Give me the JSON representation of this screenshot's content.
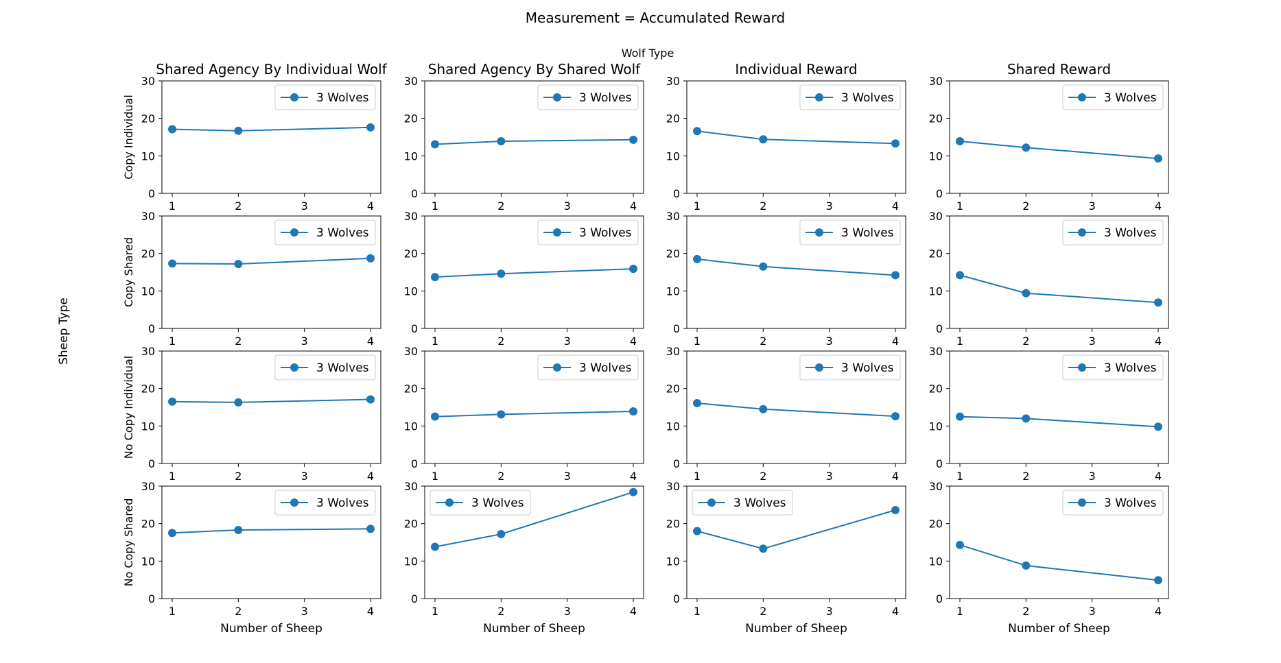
{
  "figure": {
    "title": "Measurement = Accumulated Reward",
    "column_group_label": "Wolf Type",
    "row_group_label": "Sheep Type",
    "x_axis_label": "Number of Sheep"
  },
  "colors": {
    "series": "#1f77b4",
    "axes": "#000000",
    "legend_border": "#cccccc"
  },
  "chart_data": [
    {
      "type": "line",
      "row_label": "Copy Individual",
      "column_title": "Shared Agency By Individual Wolf",
      "x": [
        1,
        2,
        4
      ],
      "series": [
        {
          "name": "3 Wolves",
          "values": [
            17.1,
            16.7,
            17.6
          ]
        }
      ],
      "xticks": [
        1,
        2,
        3,
        4
      ],
      "yticks": [
        0,
        10,
        20,
        30
      ],
      "ylim": [
        0,
        30
      ],
      "legend": "upper right"
    },
    {
      "type": "line",
      "row_label": "Copy Individual",
      "column_title": "Shared Agency By Shared Wolf",
      "x": [
        1,
        2,
        4
      ],
      "series": [
        {
          "name": "3 Wolves",
          "values": [
            13.1,
            13.9,
            14.3
          ]
        }
      ],
      "xticks": [
        1,
        2,
        3,
        4
      ],
      "yticks": [
        0,
        10,
        20,
        30
      ],
      "ylim": [
        0,
        30
      ],
      "legend": "upper right"
    },
    {
      "type": "line",
      "row_label": "Copy Individual",
      "column_title": "Individual Reward",
      "x": [
        1,
        2,
        4
      ],
      "series": [
        {
          "name": "3 Wolves",
          "values": [
            16.6,
            14.4,
            13.3
          ]
        }
      ],
      "xticks": [
        1,
        2,
        3,
        4
      ],
      "yticks": [
        0,
        10,
        20,
        30
      ],
      "ylim": [
        0,
        30
      ],
      "legend": "upper right"
    },
    {
      "type": "line",
      "row_label": "Copy Individual",
      "column_title": "Shared Reward",
      "x": [
        1,
        2,
        4
      ],
      "series": [
        {
          "name": "3 Wolves",
          "values": [
            13.9,
            12.2,
            9.3
          ]
        }
      ],
      "xticks": [
        1,
        2,
        3,
        4
      ],
      "yticks": [
        0,
        10,
        20,
        30
      ],
      "ylim": [
        0,
        30
      ],
      "legend": "upper right"
    },
    {
      "type": "line",
      "row_label": "Copy Shared",
      "column_title": "Shared Agency By Individual Wolf",
      "x": [
        1,
        2,
        4
      ],
      "series": [
        {
          "name": "3 Wolves",
          "values": [
            17.3,
            17.2,
            18.7
          ]
        }
      ],
      "xticks": [
        1,
        2,
        3,
        4
      ],
      "yticks": [
        0,
        10,
        20,
        30
      ],
      "ylim": [
        0,
        30
      ],
      "legend": "upper right"
    },
    {
      "type": "line",
      "row_label": "Copy Shared",
      "column_title": "Shared Agency By Shared Wolf",
      "x": [
        1,
        2,
        4
      ],
      "series": [
        {
          "name": "3 Wolves",
          "values": [
            13.7,
            14.6,
            15.9
          ]
        }
      ],
      "xticks": [
        1,
        2,
        3,
        4
      ],
      "yticks": [
        0,
        10,
        20,
        30
      ],
      "ylim": [
        0,
        30
      ],
      "legend": "upper right"
    },
    {
      "type": "line",
      "row_label": "Copy Shared",
      "column_title": "Individual Reward",
      "x": [
        1,
        2,
        4
      ],
      "series": [
        {
          "name": "3 Wolves",
          "values": [
            18.5,
            16.5,
            14.2
          ]
        }
      ],
      "xticks": [
        1,
        2,
        3,
        4
      ],
      "yticks": [
        0,
        10,
        20,
        30
      ],
      "ylim": [
        0,
        30
      ],
      "legend": "upper right"
    },
    {
      "type": "line",
      "row_label": "Copy Shared",
      "column_title": "Shared Reward",
      "x": [
        1,
        2,
        4
      ],
      "series": [
        {
          "name": "3 Wolves",
          "values": [
            14.2,
            9.4,
            6.9
          ]
        }
      ],
      "xticks": [
        1,
        2,
        3,
        4
      ],
      "yticks": [
        0,
        10,
        20,
        30
      ],
      "ylim": [
        0,
        30
      ],
      "legend": "upper right"
    },
    {
      "type": "line",
      "row_label": "No Copy Individual",
      "column_title": "Shared Agency By Individual Wolf",
      "x": [
        1,
        2,
        4
      ],
      "series": [
        {
          "name": "3 Wolves",
          "values": [
            16.5,
            16.3,
            17.1
          ]
        }
      ],
      "xticks": [
        1,
        2,
        3,
        4
      ],
      "yticks": [
        0,
        10,
        20,
        30
      ],
      "ylim": [
        0,
        30
      ],
      "legend": "upper right"
    },
    {
      "type": "line",
      "row_label": "No Copy Individual",
      "column_title": "Shared Agency By Shared Wolf",
      "x": [
        1,
        2,
        4
      ],
      "series": [
        {
          "name": "3 Wolves",
          "values": [
            12.5,
            13.1,
            13.9
          ]
        }
      ],
      "xticks": [
        1,
        2,
        3,
        4
      ],
      "yticks": [
        0,
        10,
        20,
        30
      ],
      "ylim": [
        0,
        30
      ],
      "legend": "upper right"
    },
    {
      "type": "line",
      "row_label": "No Copy Individual",
      "column_title": "Individual Reward",
      "x": [
        1,
        2,
        4
      ],
      "series": [
        {
          "name": "3 Wolves",
          "values": [
            16.1,
            14.5,
            12.6
          ]
        }
      ],
      "xticks": [
        1,
        2,
        3,
        4
      ],
      "yticks": [
        0,
        10,
        20,
        30
      ],
      "ylim": [
        0,
        30
      ],
      "legend": "upper right"
    },
    {
      "type": "line",
      "row_label": "No Copy Individual",
      "column_title": "Shared Reward",
      "x": [
        1,
        2,
        4
      ],
      "series": [
        {
          "name": "3 Wolves",
          "values": [
            12.5,
            12.0,
            9.8
          ]
        }
      ],
      "xticks": [
        1,
        2,
        3,
        4
      ],
      "yticks": [
        0,
        10,
        20,
        30
      ],
      "ylim": [
        0,
        30
      ],
      "legend": "upper right"
    },
    {
      "type": "line",
      "row_label": "No Copy Shared",
      "column_title": "Shared Agency By Individual Wolf",
      "x": [
        1,
        2,
        4
      ],
      "series": [
        {
          "name": "3 Wolves",
          "values": [
            17.5,
            18.3,
            18.6
          ]
        }
      ],
      "xticks": [
        1,
        2,
        3,
        4
      ],
      "yticks": [
        0,
        10,
        20,
        30
      ],
      "ylim": [
        0,
        30
      ],
      "legend": "upper right"
    },
    {
      "type": "line",
      "row_label": "No Copy Shared",
      "column_title": "Shared Agency By Shared Wolf",
      "x": [
        1,
        2,
        4
      ],
      "series": [
        {
          "name": "3 Wolves",
          "values": [
            13.8,
            17.2,
            28.4
          ]
        }
      ],
      "xticks": [
        1,
        2,
        3,
        4
      ],
      "yticks": [
        0,
        10,
        20,
        30
      ],
      "ylim": [
        0,
        30
      ],
      "legend": "upper left"
    },
    {
      "type": "line",
      "row_label": "No Copy Shared",
      "column_title": "Individual Reward",
      "x": [
        1,
        2,
        4
      ],
      "series": [
        {
          "name": "3 Wolves",
          "values": [
            18.0,
            13.3,
            23.6
          ]
        }
      ],
      "xticks": [
        1,
        2,
        3,
        4
      ],
      "yticks": [
        0,
        10,
        20,
        30
      ],
      "ylim": [
        0,
        30
      ],
      "legend": "upper left"
    },
    {
      "type": "line",
      "row_label": "No Copy Shared",
      "column_title": "Shared Reward",
      "x": [
        1,
        2,
        4
      ],
      "series": [
        {
          "name": "3 Wolves",
          "values": [
            14.3,
            8.8,
            4.9
          ]
        }
      ],
      "xticks": [
        1,
        2,
        3,
        4
      ],
      "yticks": [
        0,
        10,
        20,
        30
      ],
      "ylim": [
        0,
        30
      ],
      "legend": "upper right"
    }
  ]
}
